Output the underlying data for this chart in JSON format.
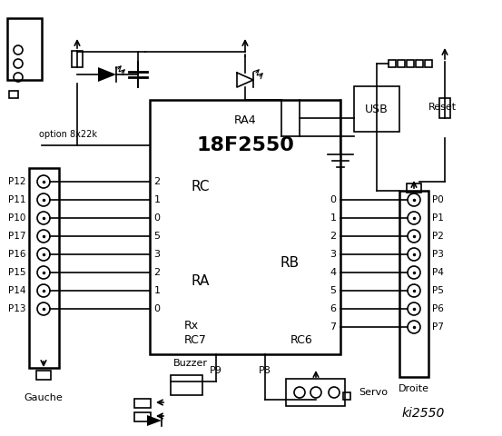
{
  "bg_color": "#ffffff",
  "title": "ki2550",
  "chip_label": "18F2550",
  "ra4_label": "RA4",
  "usb_label": "USB",
  "reset_label": "Reset",
  "gauche_label": "Gauche",
  "droite_label": "Droite",
  "buzzer_label": "Buzzer",
  "servo_label": "Servo",
  "p8_label": "P8",
  "p9_label": "P9",
  "option_label": "option 8x22k",
  "rc_label": "RC",
  "ra_label": "RA",
  "rb_label": "RB",
  "rx_label": "Rx",
  "rc7_label": "RC7",
  "rc6_label": "RC6",
  "left_labels": [
    "P12",
    "P11",
    "P10",
    "P17",
    "P16",
    "P15",
    "P14",
    "P13"
  ],
  "right_labels": [
    "P0",
    "P1",
    "P2",
    "P3",
    "P4",
    "P5",
    "P6",
    "P7"
  ],
  "rc_pin_nums": [
    "2",
    "1",
    "0"
  ],
  "ra_pin_nums": [
    "5",
    "3",
    "2",
    "1",
    "0"
  ],
  "rb_pin_nums": [
    "0",
    "1",
    "2",
    "3",
    "4",
    "5",
    "6",
    "7"
  ]
}
